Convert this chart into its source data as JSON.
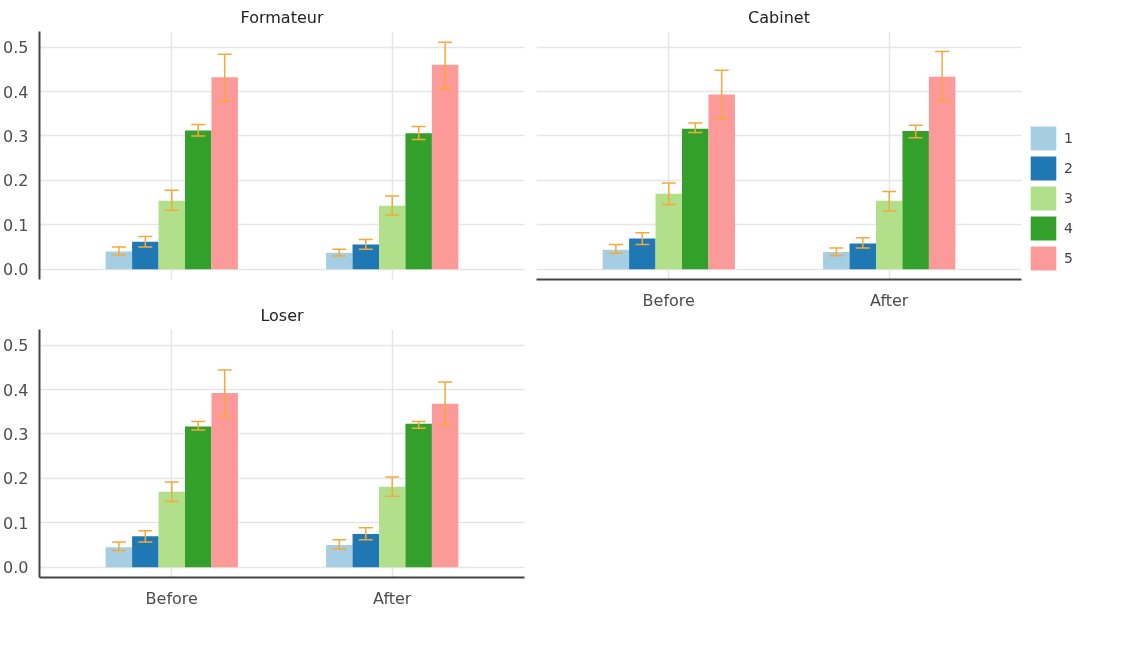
{
  "chart_data": [
    {
      "type": "bar",
      "title": "Formateur",
      "categories": [
        null,
        null
      ],
      "ylim": [
        -0.023,
        0.535
      ],
      "yticks": [
        {
          "value": 0,
          "label": "0.0"
        },
        0.1,
        0.2,
        0.3,
        0.4,
        0.5
      ],
      "grid": true,
      "tick_labels": "y",
      "legend": false,
      "series": [
        {
          "color": "#a6cee3",
          "values": [
            0.04,
            0.037
          ],
          "errors": [
            [
              0.032,
              0.05
            ],
            [
              0.03,
              0.045
            ]
          ]
        },
        {
          "color": "#1f78b4",
          "values": [
            0.062,
            0.056
          ],
          "errors": [
            [
              0.05,
              0.074
            ],
            [
              0.045,
              0.067
            ]
          ]
        },
        {
          "color": "#b2df8a",
          "values": [
            0.154,
            0.143
          ],
          "errors": [
            [
              0.133,
              0.178
            ],
            [
              0.122,
              0.165
            ]
          ]
        },
        {
          "color": "#33a02c",
          "values": [
            0.312,
            0.306
          ],
          "errors": [
            [
              0.3,
              0.326
            ],
            [
              0.292,
              0.321
            ]
          ]
        },
        {
          "color": "#fb9a99",
          "values": [
            0.432,
            0.46
          ],
          "errors": [
            [
              0.378,
              0.484
            ],
            [
              0.407,
              0.511
            ]
          ]
        }
      ]
    },
    {
      "type": "bar",
      "title": "Cabinet",
      "categories": [
        "Before",
        "After"
      ],
      "ylim": [
        -0.023,
        0.535
      ],
      "yticks": [
        0,
        0.1,
        0.2,
        0.3,
        0.4,
        0.5
      ],
      "grid": true,
      "tick_labels": "x",
      "legend": "right",
      "series": [
        {
          "name": "1",
          "color": "#a6cee3",
          "values": [
            0.044,
            0.039
          ],
          "errors": [
            [
              0.036,
              0.056
            ],
            [
              0.031,
              0.048
            ]
          ]
        },
        {
          "name": "2",
          "color": "#1f78b4",
          "values": [
            0.069,
            0.058
          ],
          "errors": [
            [
              0.056,
              0.082
            ],
            [
              0.048,
              0.071
            ]
          ]
        },
        {
          "name": "3",
          "color": "#b2df8a",
          "values": [
            0.17,
            0.154
          ],
          "errors": [
            [
              0.146,
              0.194
            ],
            [
              0.131,
              0.175
            ]
          ]
        },
        {
          "name": "4",
          "color": "#33a02c",
          "values": [
            0.316,
            0.311
          ],
          "errors": [
            [
              0.308,
              0.329
            ],
            [
              0.296,
              0.324
            ]
          ]
        },
        {
          "name": "5",
          "color": "#fb9a99",
          "values": [
            0.393,
            0.433
          ],
          "errors": [
            [
              0.339,
              0.448
            ],
            [
              0.38,
              0.49
            ]
          ]
        }
      ]
    },
    {
      "type": "bar",
      "title": "Loser",
      "categories": [
        "Before",
        "After"
      ],
      "ylim": [
        -0.023,
        0.535
      ],
      "yticks": [
        {
          "value": 0,
          "label": "0.0"
        },
        0.1,
        0.2,
        0.3,
        0.4,
        0.5
      ],
      "grid": true,
      "legend": false,
      "series": [
        {
          "color": "#a6cee3",
          "values": [
            0.045,
            0.05
          ],
          "errors": [
            [
              0.038,
              0.057
            ],
            [
              0.041,
              0.062
            ]
          ]
        },
        {
          "color": "#1f78b4",
          "values": [
            0.07,
            0.075
          ],
          "errors": [
            [
              0.057,
              0.082
            ],
            [
              0.062,
              0.089
            ]
          ]
        },
        {
          "color": "#b2df8a",
          "values": [
            0.17,
            0.181
          ],
          "errors": [
            [
              0.148,
              0.192
            ],
            [
              0.16,
              0.203
            ]
          ]
        },
        {
          "color": "#33a02c",
          "values": [
            0.317,
            0.323
          ],
          "errors": [
            [
              0.309,
              0.328
            ],
            [
              0.313,
              0.328
            ]
          ]
        },
        {
          "color": "#fb9a99",
          "values": [
            0.392,
            0.368
          ],
          "errors": [
            [
              0.34,
              0.444
            ],
            [
              0.319,
              0.417
            ]
          ]
        }
      ]
    }
  ]
}
